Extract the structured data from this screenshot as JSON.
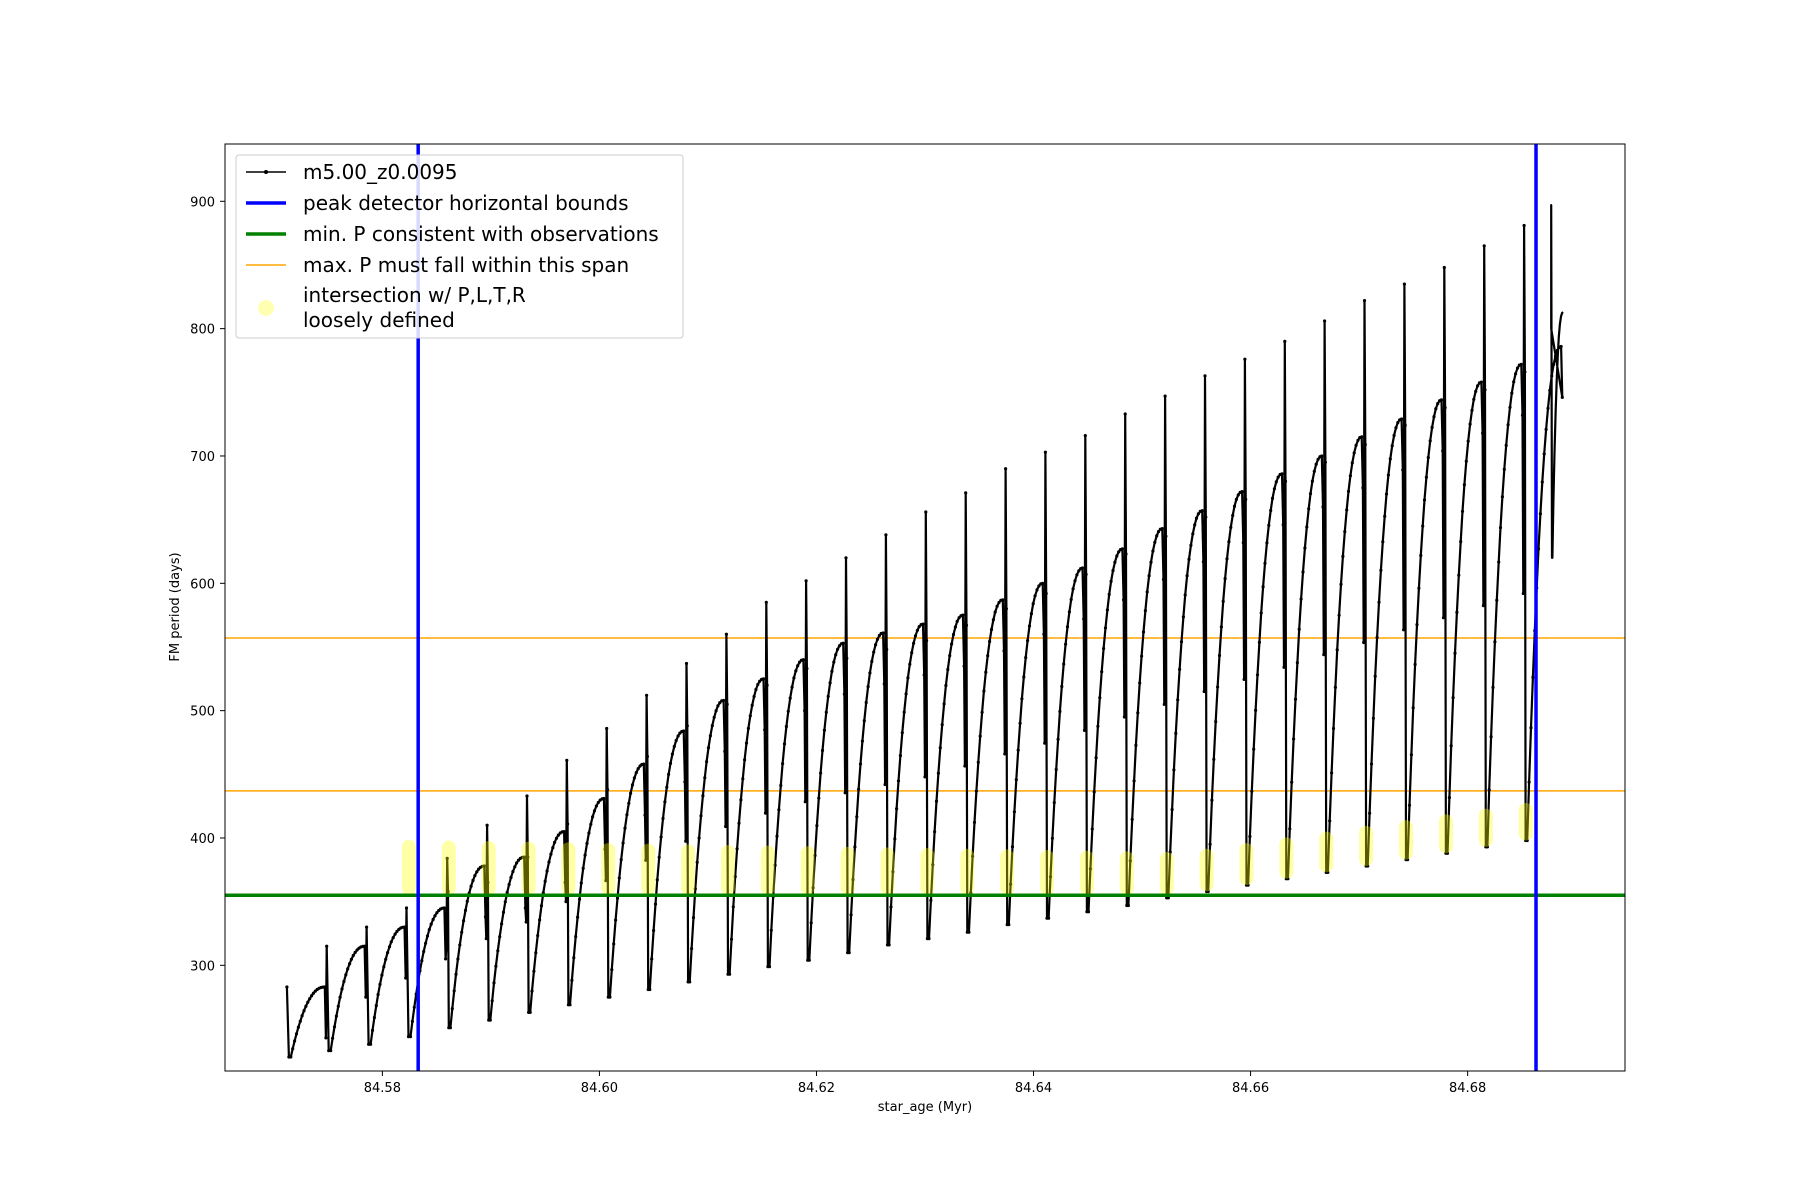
{
  "chart_data": {
    "type": "line",
    "title": "",
    "xlabel": "star_age (Myr)",
    "ylabel": "FM period (days)",
    "xlim": [
      84.5655,
      84.6945
    ],
    "ylim": [
      217,
      945
    ],
    "xticks": [
      84.58,
      84.6,
      84.62,
      84.64,
      84.66,
      84.68
    ],
    "xtick_labels": [
      "84.58",
      "84.60",
      "84.62",
      "84.64",
      "84.66",
      "84.68"
    ],
    "yticks": [
      300,
      400,
      500,
      600,
      700,
      800,
      900
    ],
    "ytick_labels": [
      "300",
      "400",
      "500",
      "600",
      "700",
      "800",
      "900"
    ],
    "grid": false,
    "legend": {
      "placement": "top-left",
      "entries": [
        {
          "label": "m5.00_z0.0095",
          "style": "line-marker",
          "color": "#000000"
        },
        {
          "label": "peak detector horizontal bounds",
          "style": "line",
          "color": "#0000ff"
        },
        {
          "label": "min. P consistent with observations",
          "style": "line",
          "color": "#008000"
        },
        {
          "label": "max. P must fall within this span",
          "style": "line",
          "color": "#ffa500"
        },
        {
          "label": "intersection w/ P,L,T,R",
          "label2": "loosely defined",
          "style": "marker",
          "color": "#ffff00"
        }
      ]
    },
    "vertical_lines": {
      "name": "peak detector horizontal bounds",
      "color": "#0000ff",
      "x": [
        84.5833,
        84.6863
      ]
    },
    "min_period_line": {
      "name": "min. P consistent with observations",
      "color": "#008000",
      "y": 355
    },
    "max_period_span": {
      "name": "max. P must fall within this span",
      "color": "#ffa500",
      "y": [
        437,
        557
      ]
    },
    "series": {
      "name": "m5.00_z0.0095",
      "color": "#000000",
      "x_start": 84.5712,
      "x_end": 84.6888,
      "cycle_count": 32,
      "cycle_min_period": [
        228,
        233,
        238,
        244,
        251,
        257,
        263,
        269,
        275,
        281,
        287,
        293,
        299,
        304,
        310,
        316,
        321,
        326,
        332,
        337,
        342,
        347,
        353,
        358,
        363,
        368,
        373,
        378,
        383,
        388,
        393,
        398
      ],
      "cycle_max_period": [
        283,
        315,
        330,
        345,
        378,
        385,
        405,
        431,
        458,
        484,
        508,
        525,
        540,
        553,
        561,
        568,
        575,
        587,
        600,
        612,
        627,
        643,
        657,
        672,
        686,
        700,
        715,
        729,
        744,
        758,
        772,
        786
      ],
      "cycle_spike_period": [
        null,
        null,
        null,
        null,
        384,
        410,
        433,
        461,
        486,
        512,
        537,
        560,
        585,
        602,
        620,
        638,
        656,
        671,
        690,
        703,
        716,
        733,
        747,
        763,
        776,
        790,
        806,
        822,
        835,
        848,
        865,
        881
      ],
      "final_max_period": 800,
      "final_spike_period": 897,
      "end_period": 813
    },
    "intersections": {
      "name": "intersection w/ P,L,T,R loosely defined",
      "color": "#ffff00",
      "x_start": 84.5833,
      "x_end": 84.6863,
      "period_min": 355,
      "period_max": 437
    }
  }
}
